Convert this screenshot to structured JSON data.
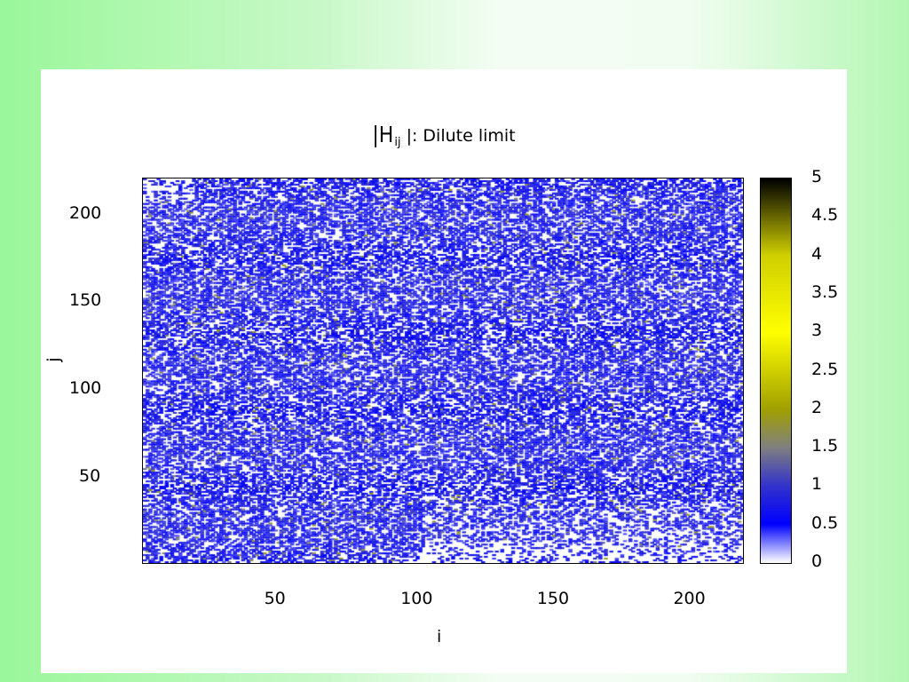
{
  "chart_data": {
    "type": "heatmap",
    "title": {
      "prefix": "|H",
      "subscript": "ij",
      "suffix": " |: Dilute limit"
    },
    "xlabel": "i",
    "ylabel": "j",
    "xlim": [
      1,
      221
    ],
    "ylim": [
      1,
      220
    ],
    "xticks": [
      "50",
      "100",
      "150",
      "200"
    ],
    "xtick_values": [
      50,
      100,
      150,
      200
    ],
    "yticks": [
      "200",
      "150",
      "100",
      "50"
    ],
    "ytick_values": [
      200,
      150,
      100,
      50
    ],
    "colorbar": {
      "range": [
        0,
        5
      ],
      "ticks": [
        "5",
        "4.5",
        "4",
        "3.5",
        "3",
        "2.5",
        "2",
        "1.5",
        "1",
        "0.5",
        "0"
      ],
      "tick_values": [
        5,
        4.5,
        4,
        3.5,
        3,
        2.5,
        2,
        1.5,
        1,
        0.5,
        0
      ],
      "colormap": [
        {
          "value": 0,
          "color": "#ffffff"
        },
        {
          "value": 0.5,
          "color": "#0000ff"
        },
        {
          "value": 1,
          "color": "#3333cc"
        },
        {
          "value": 1.5,
          "color": "#808080"
        },
        {
          "value": 2,
          "color": "#a0a000"
        },
        {
          "value": 3,
          "color": "#ffff00"
        },
        {
          "value": 4,
          "color": "#d0d000"
        },
        {
          "value": 5,
          "color": "#000000"
        }
      ]
    },
    "grid": false,
    "matrix_size": 220,
    "description_of_values": "sparse matrix; most nonzero entries |H_ij| between 0.3 and 1.0, a few up to ~1.8; lower-right triangle region near bottom edge sparse"
  }
}
